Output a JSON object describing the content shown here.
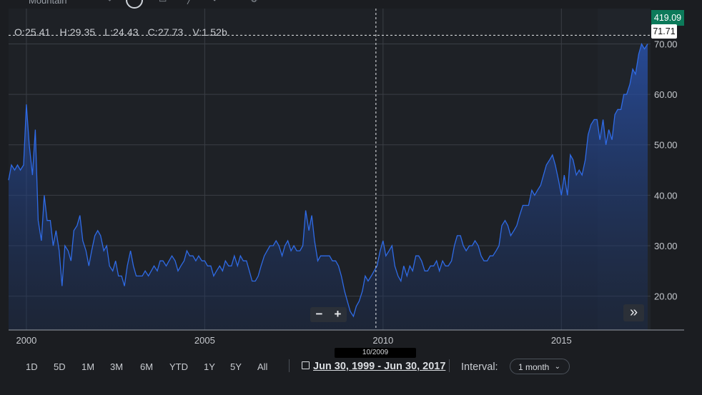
{
  "header": {
    "title_partial": "Mountain",
    "tool_icons": [
      "crosshair-icon",
      "circle-tool-icon",
      "rectangle-icon",
      "line-tool-icon",
      "marker-icon",
      "settings-icon"
    ]
  },
  "ohlc": {
    "open": "O:25.41",
    "high": "H:29.35",
    "low": "L:24.43",
    "close": "C:27.73",
    "volume": "V:1.52b"
  },
  "price_tags": {
    "last_price": "419.09",
    "crosshair_price": "71.71"
  },
  "crosshair_date": "10/2009",
  "zoom": {
    "minus": "−",
    "plus": "+"
  },
  "scroll_icon": "»",
  "toolbar": {
    "ranges": [
      "1D",
      "5D",
      "1M",
      "3M",
      "6M",
      "YTD",
      "1Y",
      "5Y",
      "All"
    ],
    "date_range": "Jun 30, 1999 - Jun 30, 2017",
    "interval_label": "Interval:",
    "interval_value": "1 month",
    "interval_chevron": "⌄"
  },
  "colors": {
    "background": "#1b1d21",
    "line": "#2f6be6",
    "last_price_tag": "#0c7a5a",
    "grid": "#3a3e45"
  },
  "chart_data": {
    "type": "area",
    "title": "",
    "xlabel": "",
    "ylabel": "",
    "x_ticks": [
      "2000",
      "2005",
      "2010",
      "2015"
    ],
    "y_ticks": [
      "20.00",
      "30.00",
      "40.00",
      "50.00",
      "60.00",
      "70.00"
    ],
    "ylim": [
      13.3,
      77.0
    ],
    "xlim": [
      1999.5,
      2017.5
    ],
    "grid": true,
    "crosshair": {
      "x": 2009.8,
      "y": 71.71
    },
    "series": [
      {
        "points": [
          [
            1999.5,
            43
          ],
          [
            1999.58,
            46
          ],
          [
            1999.67,
            45
          ],
          [
            1999.75,
            46
          ],
          [
            1999.83,
            45
          ],
          [
            1999.92,
            46
          ],
          [
            2000.0,
            58
          ],
          [
            2000.08,
            50
          ],
          [
            2000.17,
            44
          ],
          [
            2000.25,
            53
          ],
          [
            2000.33,
            35
          ],
          [
            2000.42,
            31
          ],
          [
            2000.5,
            40
          ],
          [
            2000.58,
            35
          ],
          [
            2000.67,
            35
          ],
          [
            2000.75,
            30
          ],
          [
            2000.83,
            33
          ],
          [
            2000.92,
            29
          ],
          [
            2001.0,
            22
          ],
          [
            2001.08,
            30
          ],
          [
            2001.17,
            29
          ],
          [
            2001.25,
            27
          ],
          [
            2001.33,
            33
          ],
          [
            2001.42,
            34
          ],
          [
            2001.5,
            36
          ],
          [
            2001.58,
            31
          ],
          [
            2001.67,
            29
          ],
          [
            2001.75,
            26
          ],
          [
            2001.83,
            29
          ],
          [
            2001.92,
            32
          ],
          [
            2002.0,
            33
          ],
          [
            2002.08,
            32
          ],
          [
            2002.17,
            29
          ],
          [
            2002.25,
            30
          ],
          [
            2002.33,
            26
          ],
          [
            2002.42,
            25
          ],
          [
            2002.5,
            27
          ],
          [
            2002.58,
            24
          ],
          [
            2002.67,
            24
          ],
          [
            2002.75,
            22
          ],
          [
            2002.83,
            26
          ],
          [
            2002.92,
            29
          ],
          [
            2003.0,
            26
          ],
          [
            2003.08,
            24
          ],
          [
            2003.17,
            24
          ],
          [
            2003.25,
            24
          ],
          [
            2003.33,
            25
          ],
          [
            2003.42,
            24
          ],
          [
            2003.5,
            25
          ],
          [
            2003.58,
            26
          ],
          [
            2003.67,
            25
          ],
          [
            2003.75,
            27
          ],
          [
            2003.83,
            27
          ],
          [
            2003.92,
            26
          ],
          [
            2004.0,
            27
          ],
          [
            2004.08,
            28
          ],
          [
            2004.17,
            27
          ],
          [
            2004.25,
            25
          ],
          [
            2004.33,
            26
          ],
          [
            2004.42,
            27
          ],
          [
            2004.5,
            29
          ],
          [
            2004.58,
            28
          ],
          [
            2004.67,
            28
          ],
          [
            2004.75,
            27
          ],
          [
            2004.83,
            28
          ],
          [
            2004.92,
            27
          ],
          [
            2005.0,
            27
          ],
          [
            2005.08,
            26
          ],
          [
            2005.17,
            26
          ],
          [
            2005.25,
            24
          ],
          [
            2005.33,
            25
          ],
          [
            2005.42,
            26
          ],
          [
            2005.5,
            25
          ],
          [
            2005.58,
            27
          ],
          [
            2005.67,
            26
          ],
          [
            2005.75,
            26
          ],
          [
            2005.83,
            28
          ],
          [
            2005.92,
            26
          ],
          [
            2006.0,
            28
          ],
          [
            2006.08,
            27
          ],
          [
            2006.17,
            27
          ],
          [
            2006.25,
            25
          ],
          [
            2006.33,
            23
          ],
          [
            2006.42,
            23
          ],
          [
            2006.5,
            24
          ],
          [
            2006.58,
            26
          ],
          [
            2006.67,
            28
          ],
          [
            2006.75,
            29
          ],
          [
            2006.83,
            30
          ],
          [
            2006.92,
            30
          ],
          [
            2007.0,
            31
          ],
          [
            2007.08,
            30
          ],
          [
            2007.17,
            28
          ],
          [
            2007.25,
            30
          ],
          [
            2007.33,
            31
          ],
          [
            2007.42,
            29
          ],
          [
            2007.5,
            30
          ],
          [
            2007.58,
            29
          ],
          [
            2007.67,
            29
          ],
          [
            2007.75,
            30
          ],
          [
            2007.83,
            37
          ],
          [
            2007.92,
            33
          ],
          [
            2008.0,
            36
          ],
          [
            2008.08,
            31
          ],
          [
            2008.17,
            27
          ],
          [
            2008.25,
            28
          ],
          [
            2008.33,
            28
          ],
          [
            2008.42,
            28
          ],
          [
            2008.5,
            28
          ],
          [
            2008.58,
            27
          ],
          [
            2008.67,
            27
          ],
          [
            2008.75,
            26
          ],
          [
            2008.83,
            24
          ],
          [
            2008.92,
            21
          ],
          [
            2009.0,
            19
          ],
          [
            2009.08,
            17
          ],
          [
            2009.17,
            16
          ],
          [
            2009.25,
            18
          ],
          [
            2009.33,
            19
          ],
          [
            2009.42,
            21
          ],
          [
            2009.5,
            24
          ],
          [
            2009.58,
            23
          ],
          [
            2009.67,
            24
          ],
          [
            2009.75,
            25
          ],
          [
            2009.83,
            26
          ],
          [
            2009.92,
            29
          ],
          [
            2010.0,
            31
          ],
          [
            2010.08,
            28
          ],
          [
            2010.17,
            29
          ],
          [
            2010.25,
            30
          ],
          [
            2010.33,
            26
          ],
          [
            2010.42,
            24
          ],
          [
            2010.5,
            23
          ],
          [
            2010.58,
            26
          ],
          [
            2010.67,
            24
          ],
          [
            2010.75,
            26
          ],
          [
            2010.83,
            25
          ],
          [
            2010.92,
            28
          ],
          [
            2011.0,
            28
          ],
          [
            2011.08,
            27
          ],
          [
            2011.17,
            25
          ],
          [
            2011.25,
            25
          ],
          [
            2011.33,
            26
          ],
          [
            2011.42,
            26
          ],
          [
            2011.5,
            27
          ],
          [
            2011.58,
            25
          ],
          [
            2011.67,
            27
          ],
          [
            2011.75,
            26
          ],
          [
            2011.83,
            26
          ],
          [
            2011.92,
            27
          ],
          [
            2012.0,
            30
          ],
          [
            2012.08,
            32
          ],
          [
            2012.17,
            32
          ],
          [
            2012.25,
            30
          ],
          [
            2012.33,
            29
          ],
          [
            2012.42,
            30
          ],
          [
            2012.5,
            30
          ],
          [
            2012.58,
            31
          ],
          [
            2012.67,
            30
          ],
          [
            2012.75,
            28
          ],
          [
            2012.83,
            27
          ],
          [
            2012.92,
            27
          ],
          [
            2013.0,
            28
          ],
          [
            2013.08,
            28
          ],
          [
            2013.17,
            29
          ],
          [
            2013.25,
            30
          ],
          [
            2013.33,
            34
          ],
          [
            2013.42,
            35
          ],
          [
            2013.5,
            34
          ],
          [
            2013.58,
            32
          ],
          [
            2013.67,
            33
          ],
          [
            2013.75,
            34
          ],
          [
            2013.83,
            36
          ],
          [
            2013.92,
            38
          ],
          [
            2014.0,
            38
          ],
          [
            2014.08,
            38
          ],
          [
            2014.17,
            41
          ],
          [
            2014.25,
            40
          ],
          [
            2014.33,
            41
          ],
          [
            2014.42,
            42
          ],
          [
            2014.5,
            44
          ],
          [
            2014.58,
            46
          ],
          [
            2014.67,
            47
          ],
          [
            2014.75,
            48
          ],
          [
            2014.83,
            46
          ],
          [
            2014.92,
            43
          ],
          [
            2015.0,
            40
          ],
          [
            2015.08,
            44
          ],
          [
            2015.17,
            40
          ],
          [
            2015.25,
            48
          ],
          [
            2015.33,
            47
          ],
          [
            2015.42,
            44
          ],
          [
            2015.5,
            45
          ],
          [
            2015.58,
            44
          ],
          [
            2015.67,
            47
          ],
          [
            2015.75,
            52
          ],
          [
            2015.83,
            54
          ],
          [
            2015.92,
            55
          ],
          [
            2016.0,
            55
          ],
          [
            2016.08,
            51
          ],
          [
            2016.17,
            55
          ],
          [
            2016.25,
            50
          ],
          [
            2016.33,
            53
          ],
          [
            2016.42,
            51
          ],
          [
            2016.5,
            56
          ],
          [
            2016.58,
            57
          ],
          [
            2016.67,
            57
          ],
          [
            2016.75,
            60
          ],
          [
            2016.83,
            60
          ],
          [
            2016.92,
            62
          ],
          [
            2017.0,
            65
          ],
          [
            2017.08,
            64
          ],
          [
            2017.17,
            68
          ],
          [
            2017.25,
            70
          ],
          [
            2017.33,
            69
          ],
          [
            2017.42,
            70
          ]
        ]
      }
    ]
  }
}
